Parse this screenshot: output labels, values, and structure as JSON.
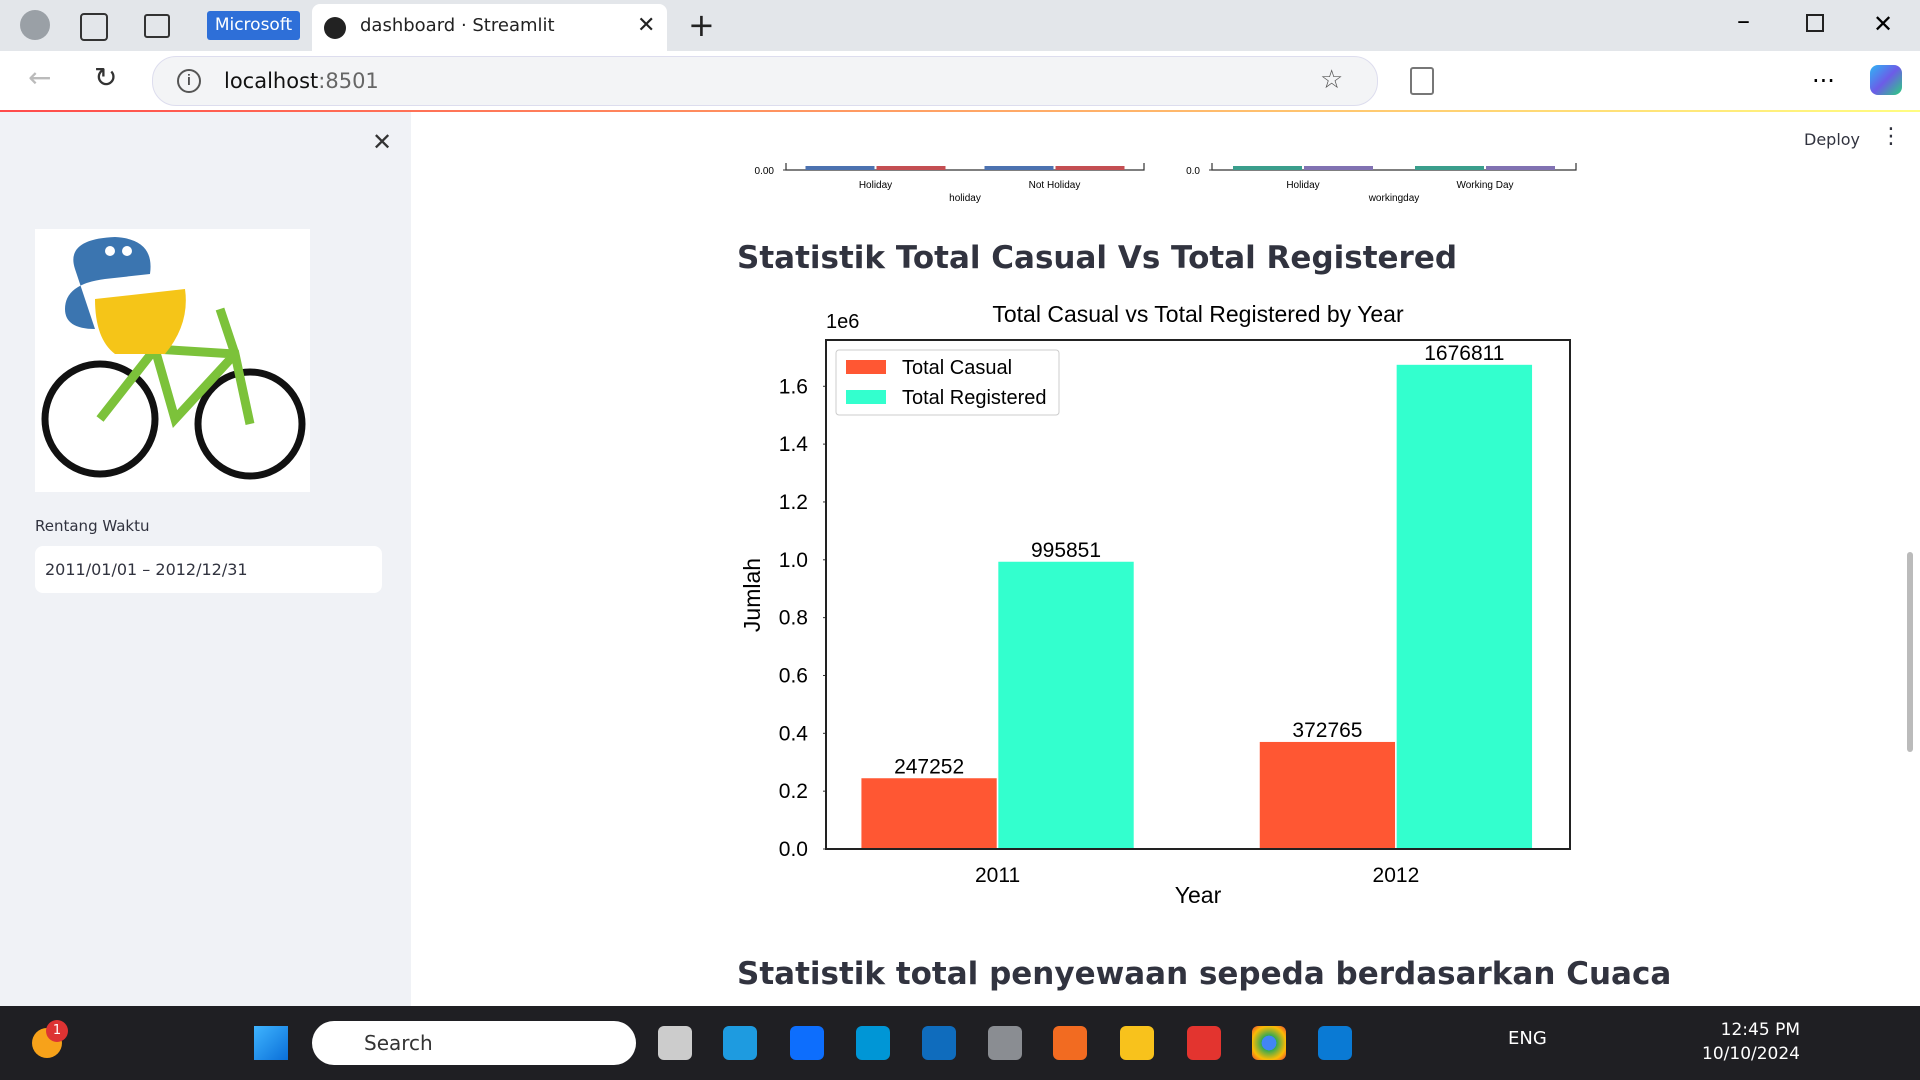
{
  "browser": {
    "profile_badge": "Microsoft",
    "tab_title": "dashboard · Streamlit",
    "url_host": "localhost",
    "url_port": ":8501"
  },
  "sidebar": {
    "range_label": "Rentang Waktu",
    "range_value": "2011/01/01 – 2012/12/31"
  },
  "header": {
    "deploy": "Deploy"
  },
  "partial_charts": [
    {
      "ytick": {
        "value": 0,
        "label": "0.00"
      },
      "categories": [
        "Holiday",
        "Not Holiday"
      ],
      "x_label": "holiday"
    },
    {
      "ytick": {
        "value": 0,
        "label": "0.0"
      },
      "categories": [
        "Holiday",
        "Working Day"
      ],
      "x_label": "workingday"
    }
  ],
  "sections": [
    {
      "heading": "Statistik Total Casual Vs Total Registered"
    },
    {
      "heading": "Statistik total penyewaan sepeda berdasarkan Cuaca"
    }
  ],
  "chart_data": {
    "type": "bar",
    "title": "Total Casual vs Total Registered by Year",
    "x_label": "Year",
    "y_label": "Jumlah",
    "offset_label": "1e6",
    "categories": [
      "2011",
      "2012"
    ],
    "series": [
      {
        "name": "Total Casual",
        "color": "#ff5733",
        "values": [
          247252,
          372765
        ]
      },
      {
        "name": "Total Registered",
        "color": "#33ffce",
        "values": [
          995851,
          1676811
        ]
      }
    ],
    "ylim": [
      0,
      1760000
    ],
    "yticks": [
      {
        "value": 0,
        "label": "0.0"
      },
      {
        "value": 200000,
        "label": "0.2"
      },
      {
        "value": 400000,
        "label": "0.4"
      },
      {
        "value": 600000,
        "label": "0.6"
      },
      {
        "value": 800000,
        "label": "0.8"
      },
      {
        "value": 1000000,
        "label": "1.0"
      },
      {
        "value": 1200000,
        "label": "1.2"
      },
      {
        "value": 1400000,
        "label": "1.4"
      },
      {
        "value": 1600000,
        "label": "1.6"
      }
    ],
    "grid": false,
    "legend": "upper left"
  },
  "taskbar": {
    "badge": "1",
    "search": "Search",
    "language": "ENG",
    "time": "12:45 PM",
    "date": "10/10/2024"
  }
}
